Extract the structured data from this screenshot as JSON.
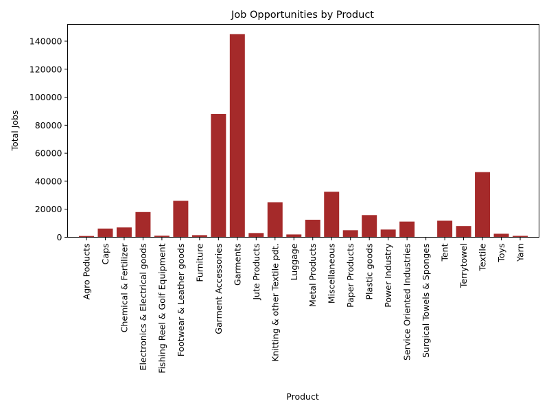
{
  "chart_data": {
    "type": "bar",
    "title": "Job Opportunities by Product",
    "xlabel": "Product",
    "ylabel": "Total Jobs",
    "bar_color": "#a52a2a",
    "ylim": [
      0,
      152000
    ],
    "yticks": [
      0,
      20000,
      40000,
      60000,
      80000,
      100000,
      120000,
      140000
    ],
    "grid": false,
    "categories": [
      "Agro Poducts",
      "Caps",
      "Chemical & Fertilizer",
      "Electronics & Electrical goods",
      "Fishing Reel & Golf Equipment",
      "Footwear & Leather goods",
      "Furniture",
      "Garment Accessories",
      "Garments",
      "Jute Products",
      "Knitting & other Textile pdt.",
      "Luggage",
      "Metal Products",
      "Miscellaneous",
      "Paper Products",
      "Plastic goods",
      "Power Industry",
      "Service Oriented Industries",
      "Surgical Towels & Sponges",
      "Tent",
      "Terrytowel",
      "Textile",
      "Toys",
      "Yarn"
    ],
    "values": [
      900,
      6200,
      7000,
      18000,
      1100,
      26000,
      1500,
      88000,
      145000,
      3000,
      25000,
      2000,
      12500,
      32500,
      5000,
      15800,
      5500,
      11200,
      0,
      11800,
      8000,
      46500,
      2500,
      1000
    ]
  }
}
